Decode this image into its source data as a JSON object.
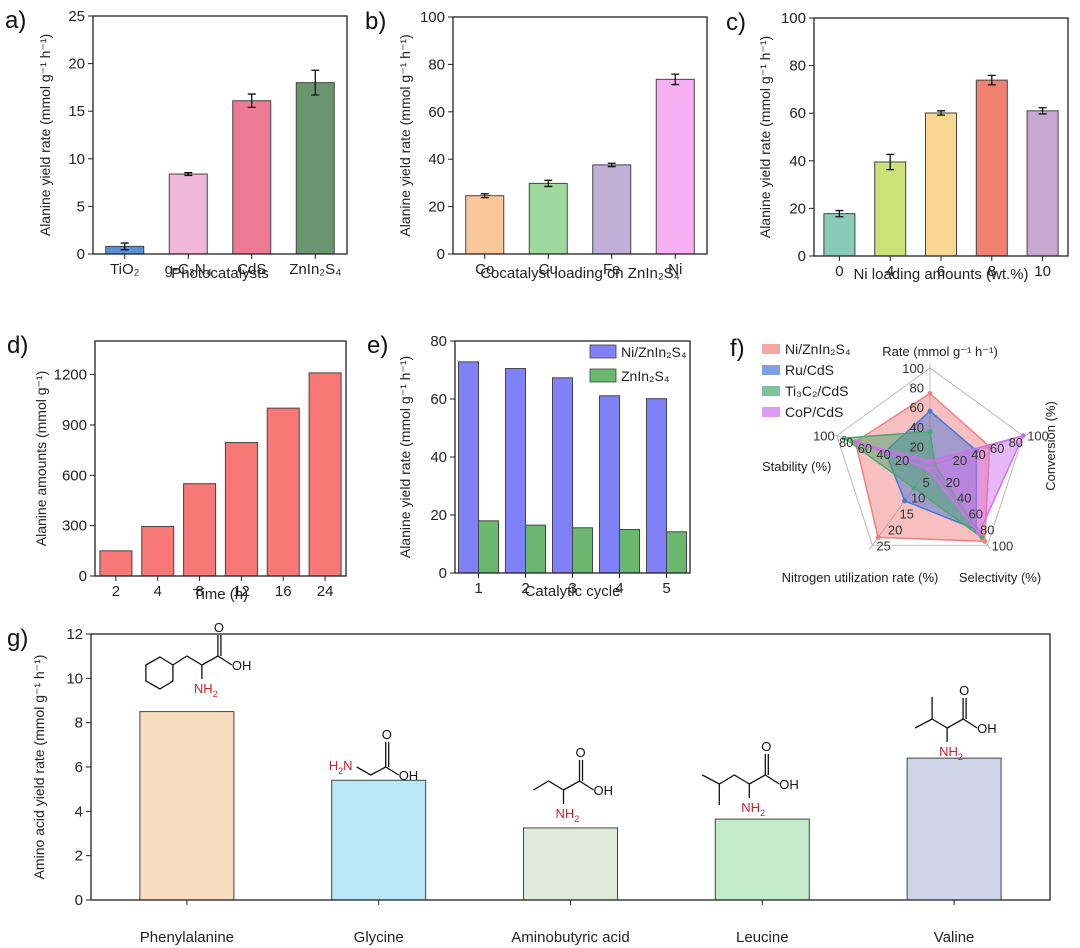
{
  "chart_data": [
    {
      "id": "a",
      "panel_label": "a)",
      "type": "bar",
      "title": "",
      "xlabel": "Photocatalysts",
      "ylabel": "Alanine yield rate (mmol g⁻¹ h⁻¹)",
      "ylim": [
        0,
        25
      ],
      "yticks": [
        0,
        5,
        10,
        15,
        20,
        25
      ],
      "categories": [
        "TiO₂",
        "g-C₃N₄",
        "CdS",
        "ZnIn₂S₄"
      ],
      "values": [
        0.8,
        8.4,
        16.1,
        18.0
      ],
      "errors": [
        0.35,
        0.15,
        0.7,
        1.3
      ],
      "colors": [
        "#5b8fd8",
        "#f0b8d6",
        "#ec7a93",
        "#6a9570"
      ]
    },
    {
      "id": "b",
      "panel_label": "b)",
      "type": "bar",
      "title": "",
      "xlabel": "Cocatalyst loading on ZnIn₂S₄",
      "ylabel": "Alanine yield rate (mmol g⁻¹ h⁻¹)",
      "ylim": [
        0,
        100
      ],
      "yticks": [
        0,
        20,
        40,
        60,
        80,
        100
      ],
      "categories": [
        "Co",
        "Cu",
        "Fe",
        "Ni"
      ],
      "values": [
        24.6,
        29.8,
        37.6,
        73.7
      ],
      "errors": [
        0.8,
        1.3,
        0.7,
        2.2
      ],
      "colors": [
        "#f8c89a",
        "#9dd89c",
        "#c0b0d8",
        "#f8b0f4"
      ]
    },
    {
      "id": "c",
      "panel_label": "c)",
      "type": "bar",
      "title": "",
      "xlabel": "Ni loading amounts (wt.%)",
      "ylabel": "Alanine yield rate (mmol g⁻¹ h⁻¹)",
      "ylim": [
        0,
        100
      ],
      "yticks": [
        0,
        20,
        40,
        60,
        80,
        100
      ],
      "categories": [
        "0",
        "4",
        "6",
        "8",
        "10"
      ],
      "values": [
        17.8,
        39.5,
        60.1,
        73.9,
        61.0
      ],
      "errors": [
        1.3,
        3.2,
        0.9,
        2.0,
        1.3
      ],
      "colors": [
        "#88ccb8",
        "#cde07a",
        "#f8d890",
        "#f08070",
        "#c8a8d0"
      ]
    },
    {
      "id": "d",
      "panel_label": "d)",
      "type": "bar",
      "title": "",
      "xlabel": "Time (h)",
      "ylabel": "Alanine amounts (mmol g⁻¹)",
      "ylim": [
        0,
        1400
      ],
      "yticks": [
        0,
        300,
        600,
        900,
        1200
      ],
      "categories": [
        "2",
        "4",
        "8",
        "12",
        "16",
        "24"
      ],
      "values": [
        150,
        295,
        550,
        795,
        1000,
        1210
      ],
      "colors": [
        "#f87878"
      ]
    },
    {
      "id": "e",
      "panel_label": "e)",
      "type": "bar",
      "title": "",
      "xlabel": "Catalytic cycle",
      "ylabel": "Alanine yield rate (mmol g⁻¹ h⁻¹)",
      "ylim": [
        0,
        80
      ],
      "yticks": [
        0,
        20,
        40,
        60,
        80
      ],
      "categories": [
        "1",
        "2",
        "3",
        "4",
        "5"
      ],
      "legend_position": "top-right",
      "series": [
        {
          "name": "Ni/ZnIn₂S₄",
          "values": [
            72.8,
            70.5,
            67.3,
            61.1,
            60.1
          ],
          "color": "#8080f8"
        },
        {
          "name": "ZnIn₂S₄",
          "values": [
            18.0,
            16.5,
            15.6,
            15.0,
            14.2
          ],
          "color": "#6ab870"
        }
      ]
    },
    {
      "id": "f",
      "panel_label": "f)",
      "type": "radar",
      "title": "",
      "legend_position": "top-left",
      "axes": [
        {
          "name": "Rate (mmol g⁻¹ h⁻¹)",
          "max": 100,
          "ticks": [
            20,
            40,
            60,
            80,
            100
          ]
        },
        {
          "name": "Conversion (%)",
          "max": 100,
          "ticks": [
            20,
            40,
            60,
            80,
            100
          ]
        },
        {
          "name": "Selectivity (%)",
          "max": 100,
          "ticks": [
            20,
            40,
            60,
            80,
            100
          ]
        },
        {
          "name": "Nitrogen utilization rate (%)",
          "max": 25,
          "ticks": [
            5,
            10,
            15,
            20,
            25
          ]
        },
        {
          "name": "Stability (%)",
          "max": 100,
          "ticks": [
            20,
            40,
            60,
            80,
            100
          ]
        }
      ],
      "series": [
        {
          "name": "Ni/ZnIn₂S₄",
          "values": [
            74,
            64,
            95,
            22.5,
            80
          ],
          "color": "#f08080"
        },
        {
          "name": "Ru/CdS",
          "values": [
            56,
            50,
            80,
            11,
            48
          ],
          "color": "#4a78d8"
        },
        {
          "name": "Ti₃C₂/CdS",
          "values": [
            35,
            5,
            90,
            7,
            92
          ],
          "color": "#4aa870"
        },
        {
          "name": "CoP/CdS",
          "values": [
            5,
            100,
            85,
            1,
            78
          ],
          "color": "#d070f0"
        }
      ]
    },
    {
      "id": "g",
      "panel_label": "g)",
      "type": "bar",
      "title": "",
      "xlabel": "",
      "ylabel": "Amino acid yield rate (mmol g⁻¹ h⁻¹)",
      "ylim": [
        0,
        12
      ],
      "yticks": [
        0,
        2,
        4,
        6,
        8,
        10,
        12
      ],
      "categories": [
        "Phenylalanine",
        "Glycine",
        "Aminobutyric acid",
        "Leucine",
        "Valine"
      ],
      "values": [
        8.5,
        5.4,
        3.25,
        3.65,
        6.4
      ],
      "colors": [
        "#f8dcc0",
        "#b8e8f8",
        "#e0ead8",
        "#c4eccc",
        "#d0d4e8"
      ],
      "annotations": {
        "oh": "OH",
        "o": "O",
        "nh2": "NH",
        "h2n": "H",
        "sub2": "2",
        "n": "N"
      }
    }
  ]
}
